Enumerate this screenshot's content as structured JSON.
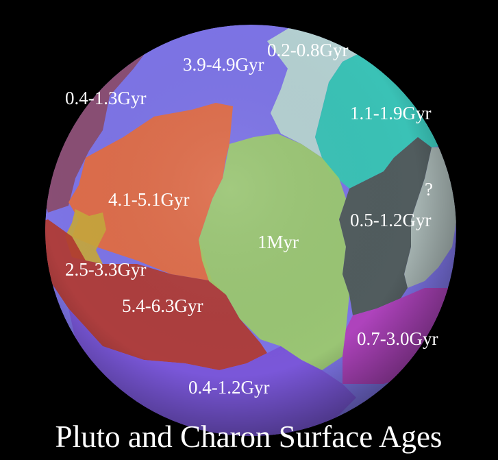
{
  "title": "Pluto and Charon Surface Ages",
  "regions": [
    {
      "id": "r-39-49",
      "label": "3.9-4.9Gyr",
      "color": "#7d74e6"
    },
    {
      "id": "r-02-08",
      "label": "0.2-0.8Gyr",
      "color": "#b9d8cf"
    },
    {
      "id": "r-04-13",
      "label": "0.4-1.3Gyr",
      "color": "#8a4b6a"
    },
    {
      "id": "r-11-19",
      "label": "1.1-1.9Gyr",
      "color": "#34c9b2"
    },
    {
      "id": "r-41-51",
      "label": "4.1-5.1Gyr",
      "color": "#e56c3e"
    },
    {
      "id": "r-unknown",
      "label": "?",
      "color": "#a8b9ad"
    },
    {
      "id": "r-05-12",
      "label": "0.5-1.2Gyr",
      "color": "#4d5a52"
    },
    {
      "id": "r-1myr",
      "label": "1Myr",
      "color": "#9ccc6a"
    },
    {
      "id": "r-25-33",
      "label": "2.5-3.3Gyr",
      "color": "#c6a73c"
    },
    {
      "id": "r-54-63",
      "label": "5.4-6.3Gyr",
      "color": "#b13a30"
    },
    {
      "id": "r-07-30",
      "label": "0.7-3.0Gyr",
      "color": "#b23fb8"
    },
    {
      "id": "r-04-12",
      "label": "0.4-1.2Gyr",
      "color": "#7a55d8"
    }
  ]
}
